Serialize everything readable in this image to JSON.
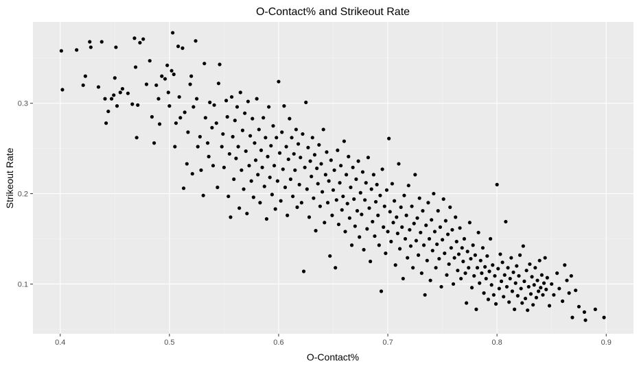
{
  "chart_data": {
    "type": "scatter",
    "title": "O-Contact% and Strikeout Rate",
    "xlabel": "O-Contact%",
    "ylabel": "Strikeout Rate",
    "xlim": [
      0.375,
      0.925
    ],
    "ylim": [
      0.045,
      0.39
    ],
    "x_ticks": [
      0.4,
      0.5,
      0.6,
      0.7,
      0.8,
      0.9
    ],
    "x_tick_labels": [
      "0.4",
      "0.5",
      "0.6",
      "0.7",
      "0.8",
      "0.9"
    ],
    "y_ticks": [
      0.1,
      0.2,
      0.3
    ],
    "y_tick_labels": [
      "0.1",
      "0.2",
      "0.3"
    ],
    "grid": true,
    "point_color": "#000000",
    "panel_color": "#ebebeb",
    "points": [
      [
        0.401,
        0.358
      ],
      [
        0.402,
        0.315
      ],
      [
        0.415,
        0.359
      ],
      [
        0.421,
        0.32
      ],
      [
        0.423,
        0.33
      ],
      [
        0.427,
        0.368
      ],
      [
        0.428,
        0.362
      ],
      [
        0.435,
        0.318
      ],
      [
        0.438,
        0.368
      ],
      [
        0.441,
        0.305
      ],
      [
        0.442,
        0.278
      ],
      [
        0.444,
        0.291
      ],
      [
        0.447,
        0.305
      ],
      [
        0.449,
        0.309
      ],
      [
        0.45,
        0.328
      ],
      [
        0.451,
        0.362
      ],
      [
        0.452,
        0.297
      ],
      [
        0.455,
        0.312
      ],
      [
        0.457,
        0.316
      ],
      [
        0.462,
        0.311
      ],
      [
        0.466,
        0.299
      ],
      [
        0.468,
        0.372
      ],
      [
        0.469,
        0.34
      ],
      [
        0.47,
        0.262
      ],
      [
        0.471,
        0.298
      ],
      [
        0.473,
        0.367
      ],
      [
        0.476,
        0.371
      ],
      [
        0.479,
        0.321
      ],
      [
        0.482,
        0.347
      ],
      [
        0.484,
        0.285
      ],
      [
        0.486,
        0.256
      ],
      [
        0.488,
        0.32
      ],
      [
        0.49,
        0.305
      ],
      [
        0.491,
        0.277
      ],
      [
        0.493,
        0.33
      ],
      [
        0.496,
        0.327
      ],
      [
        0.498,
        0.342
      ],
      [
        0.499,
        0.312
      ],
      [
        0.5,
        0.297
      ],
      [
        0.502,
        0.336
      ],
      [
        0.503,
        0.378
      ],
      [
        0.504,
        0.332
      ],
      [
        0.505,
        0.252
      ],
      [
        0.506,
        0.278
      ],
      [
        0.508,
        0.363
      ],
      [
        0.509,
        0.307
      ],
      [
        0.51,
        0.284
      ],
      [
        0.512,
        0.361
      ],
      [
        0.513,
        0.206
      ],
      [
        0.514,
        0.29
      ],
      [
        0.516,
        0.233
      ],
      [
        0.517,
        0.268
      ],
      [
        0.519,
        0.321
      ],
      [
        0.52,
        0.33
      ],
      [
        0.521,
        0.222
      ],
      [
        0.522,
        0.296
      ],
      [
        0.524,
        0.369
      ],
      [
        0.525,
        0.305
      ],
      [
        0.526,
        0.252
      ],
      [
        0.528,
        0.263
      ],
      [
        0.529,
        0.226
      ],
      [
        0.531,
        0.198
      ],
      [
        0.532,
        0.344
      ],
      [
        0.533,
        0.284
      ],
      [
        0.535,
        0.256
      ],
      [
        0.536,
        0.241
      ],
      [
        0.537,
        0.301
      ],
      [
        0.539,
        0.273
      ],
      [
        0.54,
        0.231
      ],
      [
        0.541,
        0.298
      ],
      [
        0.543,
        0.278
      ],
      [
        0.544,
        0.207
      ],
      [
        0.545,
        0.322
      ],
      [
        0.546,
        0.343
      ],
      [
        0.548,
        0.252
      ],
      [
        0.549,
        0.266
      ],
      [
        0.55,
        0.229
      ],
      [
        0.552,
        0.303
      ],
      [
        0.553,
        0.285
      ],
      [
        0.554,
        0.197
      ],
      [
        0.555,
        0.244
      ],
      [
        0.556,
        0.174
      ],
      [
        0.557,
        0.307
      ],
      [
        0.558,
        0.263
      ],
      [
        0.559,
        0.216
      ],
      [
        0.56,
        0.281
      ],
      [
        0.561,
        0.239
      ],
      [
        0.562,
        0.296
      ],
      [
        0.563,
        0.252
      ],
      [
        0.564,
        0.184
      ],
      [
        0.565,
        0.312
      ],
      [
        0.566,
        0.226
      ],
      [
        0.567,
        0.27
      ],
      [
        0.568,
        0.205
      ],
      [
        0.569,
        0.289
      ],
      [
        0.57,
        0.247
      ],
      [
        0.571,
        0.178
      ],
      [
        0.572,
        0.302
      ],
      [
        0.573,
        0.231
      ],
      [
        0.574,
        0.264
      ],
      [
        0.575,
        0.214
      ],
      [
        0.576,
        0.283
      ],
      [
        0.577,
        0.196
      ],
      [
        0.578,
        0.256
      ],
      [
        0.579,
        0.237
      ],
      [
        0.58,
        0.305
      ],
      [
        0.581,
        0.221
      ],
      [
        0.582,
        0.271
      ],
      [
        0.583,
        0.19
      ],
      [
        0.584,
        0.248
      ],
      [
        0.585,
        0.229
      ],
      [
        0.586,
        0.284
      ],
      [
        0.587,
        0.208
      ],
      [
        0.588,
        0.262
      ],
      [
        0.589,
        0.172
      ],
      [
        0.59,
        0.241
      ],
      [
        0.591,
        0.296
      ],
      [
        0.592,
        0.218
      ],
      [
        0.593,
        0.253
      ],
      [
        0.594,
        0.199
      ],
      [
        0.595,
        0.275
      ],
      [
        0.596,
        0.231
      ],
      [
        0.597,
        0.183
      ],
      [
        0.598,
        0.262
      ],
      [
        0.599,
        0.214
      ],
      [
        0.6,
        0.324
      ],
      [
        0.601,
        0.245
      ],
      [
        0.602,
        0.192
      ],
      [
        0.603,
        0.268
      ],
      [
        0.604,
        0.227
      ],
      [
        0.605,
        0.297
      ],
      [
        0.606,
        0.207
      ],
      [
        0.607,
        0.252
      ],
      [
        0.608,
        0.176
      ],
      [
        0.609,
        0.238
      ],
      [
        0.61,
        0.283
      ],
      [
        0.611,
        0.216
      ],
      [
        0.612,
        0.262
      ],
      [
        0.613,
        0.197
      ],
      [
        0.614,
        0.244
      ],
      [
        0.615,
        0.226
      ],
      [
        0.616,
        0.271
      ],
      [
        0.617,
        0.185
      ],
      [
        0.618,
        0.255
      ],
      [
        0.619,
        0.21
      ],
      [
        0.62,
        0.24
      ],
      [
        0.621,
        0.19
      ],
      [
        0.622,
        0.266
      ],
      [
        0.623,
        0.114
      ],
      [
        0.624,
        0.229
      ],
      [
        0.625,
        0.301
      ],
      [
        0.626,
        0.205
      ],
      [
        0.627,
        0.251
      ],
      [
        0.628,
        0.174
      ],
      [
        0.629,
        0.236
      ],
      [
        0.63,
        0.219
      ],
      [
        0.631,
        0.262
      ],
      [
        0.632,
        0.195
      ],
      [
        0.633,
        0.243
      ],
      [
        0.634,
        0.159
      ],
      [
        0.635,
        0.228
      ],
      [
        0.636,
        0.211
      ],
      [
        0.637,
        0.254
      ],
      [
        0.638,
        0.186
      ],
      [
        0.639,
        0.233
      ],
      [
        0.64,
        0.202
      ],
      [
        0.641,
        0.271
      ],
      [
        0.642,
        0.168
      ],
      [
        0.643,
        0.221
      ],
      [
        0.644,
        0.246
      ],
      [
        0.645,
        0.19
      ],
      [
        0.646,
        0.214
      ],
      [
        0.647,
        0.131
      ],
      [
        0.648,
        0.237
      ],
      [
        0.649,
        0.176
      ],
      [
        0.65,
        0.204
      ],
      [
        0.651,
        0.226
      ],
      [
        0.652,
        0.118
      ],
      [
        0.653,
        0.193
      ],
      [
        0.654,
        0.248
      ],
      [
        0.655,
        0.166
      ],
      [
        0.656,
        0.212
      ],
      [
        0.657,
        0.231
      ],
      [
        0.658,
        0.182
      ],
      [
        0.659,
        0.197
      ],
      [
        0.66,
        0.258
      ],
      [
        0.661,
        0.158
      ],
      [
        0.662,
        0.221
      ],
      [
        0.663,
        0.189
      ],
      [
        0.664,
        0.241
      ],
      [
        0.665,
        0.173
      ],
      [
        0.666,
        0.207
      ],
      [
        0.667,
        0.143
      ],
      [
        0.668,
        0.229
      ],
      [
        0.669,
        0.194
      ],
      [
        0.67,
        0.164
      ],
      [
        0.671,
        0.216
      ],
      [
        0.672,
        0.181
      ],
      [
        0.673,
        0.236
      ],
      [
        0.674,
        0.152
      ],
      [
        0.675,
        0.201
      ],
      [
        0.676,
        0.177
      ],
      [
        0.677,
        0.224
      ],
      [
        0.678,
        0.138
      ],
      [
        0.679,
        0.193
      ],
      [
        0.68,
        0.212
      ],
      [
        0.681,
        0.161
      ],
      [
        0.682,
        0.24
      ],
      [
        0.683,
        0.184
      ],
      [
        0.684,
        0.125
      ],
      [
        0.685,
        0.205
      ],
      [
        0.686,
        0.169
      ],
      [
        0.687,
        0.221
      ],
      [
        0.688,
        0.153
      ],
      [
        0.689,
        0.191
      ],
      [
        0.69,
        0.21
      ],
      [
        0.691,
        0.176
      ],
      [
        0.692,
        0.143
      ],
      [
        0.693,
        0.198
      ],
      [
        0.694,
        0.092
      ],
      [
        0.695,
        0.227
      ],
      [
        0.696,
        0.163
      ],
      [
        0.697,
        0.186
      ],
      [
        0.698,
        0.134
      ],
      [
        0.699,
        0.204
      ],
      [
        0.7,
        0.158
      ],
      [
        0.701,
        0.261
      ],
      [
        0.702,
        0.18
      ],
      [
        0.703,
        0.147
      ],
      [
        0.704,
        0.211
      ],
      [
        0.705,
        0.168
      ],
      [
        0.706,
        0.192
      ],
      [
        0.707,
        0.121
      ],
      [
        0.708,
        0.174
      ],
      [
        0.709,
        0.156
      ],
      [
        0.71,
        0.233
      ],
      [
        0.711,
        0.139
      ],
      [
        0.712,
        0.185
      ],
      [
        0.713,
        0.163
      ],
      [
        0.714,
        0.106
      ],
      [
        0.715,
        0.198
      ],
      [
        0.716,
        0.15
      ],
      [
        0.717,
        0.176
      ],
      [
        0.718,
        0.129
      ],
      [
        0.719,
        0.209
      ],
      [
        0.72,
        0.16
      ],
      [
        0.721,
        0.142
      ],
      [
        0.722,
        0.186
      ],
      [
        0.723,
        0.118
      ],
      [
        0.724,
        0.167
      ],
      [
        0.725,
        0.221
      ],
      [
        0.726,
        0.148
      ],
      [
        0.727,
        0.173
      ],
      [
        0.728,
        0.132
      ],
      [
        0.729,
        0.195
      ],
      [
        0.73,
        0.157
      ],
      [
        0.731,
        0.112
      ],
      [
        0.732,
        0.181
      ],
      [
        0.733,
        0.143
      ],
      [
        0.734,
        0.088
      ],
      [
        0.735,
        0.165
      ],
      [
        0.736,
        0.126
      ],
      [
        0.737,
        0.19
      ],
      [
        0.738,
        0.15
      ],
      [
        0.739,
        0.104
      ],
      [
        0.74,
        0.171
      ],
      [
        0.741,
        0.137
      ],
      [
        0.742,
        0.2
      ],
      [
        0.743,
        0.158
      ],
      [
        0.744,
        0.118
      ],
      [
        0.745,
        0.144
      ],
      [
        0.746,
        0.181
      ],
      [
        0.747,
        0.128
      ],
      [
        0.748,
        0.163
      ],
      [
        0.749,
        0.097
      ],
      [
        0.75,
        0.149
      ],
      [
        0.751,
        0.194
      ],
      [
        0.752,
        0.134
      ],
      [
        0.753,
        0.17
      ],
      [
        0.754,
        0.11
      ],
      [
        0.755,
        0.155
      ],
      [
        0.756,
        0.122
      ],
      [
        0.757,
        0.185
      ],
      [
        0.758,
        0.14
      ],
      [
        0.759,
        0.16
      ],
      [
        0.76,
        0.1
      ],
      [
        0.761,
        0.129
      ],
      [
        0.762,
        0.174
      ],
      [
        0.763,
        0.147
      ],
      [
        0.764,
        0.115
      ],
      [
        0.765,
        0.133
      ],
      [
        0.766,
        0.162
      ],
      [
        0.767,
        0.106
      ],
      [
        0.768,
        0.14
      ],
      [
        0.769,
        0.125
      ],
      [
        0.77,
        0.15
      ],
      [
        0.771,
        0.112
      ],
      [
        0.772,
        0.079
      ],
      [
        0.773,
        0.136
      ],
      [
        0.774,
        0.118
      ],
      [
        0.775,
        0.168
      ],
      [
        0.776,
        0.128
      ],
      [
        0.777,
        0.096
      ],
      [
        0.778,
        0.143
      ],
      [
        0.779,
        0.109
      ],
      [
        0.78,
        0.132
      ],
      [
        0.781,
        0.072
      ],
      [
        0.782,
        0.118
      ],
      [
        0.783,
        0.157
      ],
      [
        0.784,
        0.101
      ],
      [
        0.785,
        0.126
      ],
      [
        0.786,
        0.112
      ],
      [
        0.787,
        0.14
      ],
      [
        0.788,
        0.09
      ],
      [
        0.789,
        0.119
      ],
      [
        0.79,
        0.106
      ],
      [
        0.791,
        0.131
      ],
      [
        0.792,
        0.083
      ],
      [
        0.793,
        0.114
      ],
      [
        0.794,
        0.15
      ],
      [
        0.795,
        0.099
      ],
      [
        0.796,
        0.121
      ],
      [
        0.797,
        0.088
      ],
      [
        0.798,
        0.109
      ],
      [
        0.799,
        0.078
      ],
      [
        0.8,
        0.21
      ],
      [
        0.801,
        0.117
      ],
      [
        0.802,
        0.095
      ],
      [
        0.803,
        0.133
      ],
      [
        0.804,
        0.103
      ],
      [
        0.805,
        0.124
      ],
      [
        0.806,
        0.086
      ],
      [
        0.807,
        0.11
      ],
      [
        0.808,
        0.169
      ],
      [
        0.809,
        0.097
      ],
      [
        0.81,
        0.118
      ],
      [
        0.811,
        0.08
      ],
      [
        0.812,
        0.106
      ],
      [
        0.813,
        0.129
      ],
      [
        0.814,
        0.092
      ],
      [
        0.815,
        0.113
      ],
      [
        0.816,
        0.072
      ],
      [
        0.817,
        0.101
      ],
      [
        0.818,
        0.12
      ],
      [
        0.819,
        0.087
      ],
      [
        0.82,
        0.109
      ],
      [
        0.821,
        0.132
      ],
      [
        0.822,
        0.095
      ],
      [
        0.823,
        0.079
      ],
      [
        0.824,
        0.142
      ],
      [
        0.825,
        0.103
      ],
      [
        0.826,
        0.084
      ],
      [
        0.827,
        0.115
      ],
      [
        0.828,
        0.071
      ],
      [
        0.829,
        0.097
      ],
      [
        0.83,
        0.122
      ],
      [
        0.831,
        0.089
      ],
      [
        0.832,
        0.108
      ],
      [
        0.833,
        0.077
      ],
      [
        0.834,
        0.099
      ],
      [
        0.835,
        0.118
      ],
      [
        0.836,
        0.085
      ],
      [
        0.837,
        0.104
      ],
      [
        0.838,
        0.092
      ],
      [
        0.839,
        0.126
      ],
      [
        0.84,
        0.096
      ],
      [
        0.841,
        0.11
      ],
      [
        0.842,
        0.088
      ],
      [
        0.843,
        0.101
      ],
      [
        0.844,
        0.129
      ],
      [
        0.845,
        0.094
      ],
      [
        0.846,
        0.107
      ],
      [
        0.848,
        0.076
      ],
      [
        0.85,
        0.1
      ],
      [
        0.852,
        0.088
      ],
      [
        0.855,
        0.112
      ],
      [
        0.857,
        0.095
      ],
      [
        0.86,
        0.081
      ],
      [
        0.862,
        0.121
      ],
      [
        0.864,
        0.104
      ],
      [
        0.866,
        0.09
      ],
      [
        0.868,
        0.109
      ],
      [
        0.869,
        0.063
      ],
      [
        0.872,
        0.093
      ],
      [
        0.875,
        0.075
      ],
      [
        0.88,
        0.069
      ],
      [
        0.881,
        0.06
      ],
      [
        0.89,
        0.072
      ],
      [
        0.898,
        0.063
      ]
    ]
  }
}
